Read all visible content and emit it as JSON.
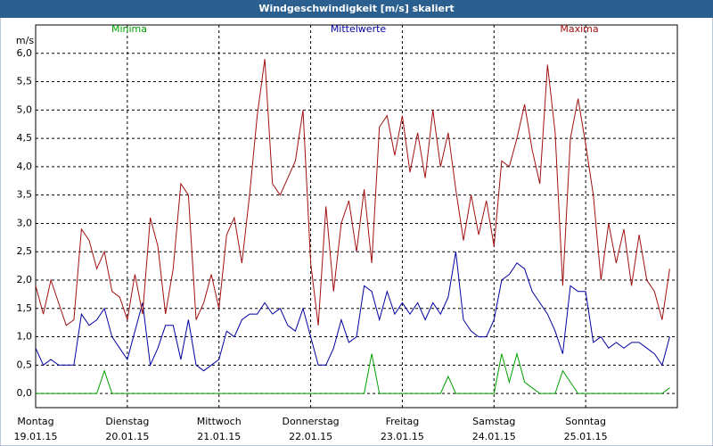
{
  "chart_data": {
    "type": "line",
    "title": "Windgeschwindigkeit [m/s] skaliert",
    "y_label": "m/s",
    "x": [
      0,
      2,
      4,
      6,
      8,
      10,
      12,
      14,
      16,
      18,
      20,
      22,
      24,
      26,
      28,
      30,
      32,
      34,
      36,
      38,
      40,
      42,
      44,
      46,
      48,
      50,
      52,
      54,
      56,
      58,
      60,
      62,
      64,
      66,
      68,
      70,
      72,
      74,
      76,
      78,
      80,
      82,
      84,
      86,
      88,
      90,
      92,
      94,
      96,
      98,
      100,
      102,
      104,
      106,
      108,
      110,
      112,
      114,
      116,
      118,
      120,
      122,
      124,
      126,
      128,
      130,
      132,
      134,
      136,
      138,
      140,
      142,
      144,
      146,
      148,
      150,
      152,
      154,
      156,
      158,
      160,
      162,
      164,
      166
    ],
    "series": [
      {
        "name": "Minima",
        "color": "#00a000",
        "values": [
          0,
          0,
          0,
          0,
          0,
          0,
          0,
          0,
          0,
          0.4,
          0,
          0,
          0,
          0,
          0,
          0,
          0,
          0,
          0,
          0,
          0,
          0,
          0,
          0,
          0,
          0,
          0,
          0,
          0,
          0,
          0,
          0,
          0,
          0,
          0,
          0,
          0,
          0,
          0,
          0,
          0,
          0,
          0,
          0,
          0.7,
          0,
          0,
          0,
          0,
          0,
          0,
          0,
          0,
          0,
          0.3,
          0,
          0,
          0,
          0,
          0,
          0,
          0.7,
          0.2,
          0.7,
          0.2,
          0.1,
          0,
          0,
          0,
          0.4,
          0.2,
          0,
          0,
          0,
          0,
          0,
          0,
          0,
          0,
          0,
          0,
          0,
          0,
          0.1
        ]
      },
      {
        "name": "Mittelwerte",
        "color": "#0000a0",
        "values": [
          0.8,
          0.5,
          0.6,
          0.5,
          0.5,
          0.5,
          1.4,
          1.2,
          1.3,
          1.5,
          1.0,
          0.8,
          0.6,
          1.1,
          1.6,
          0.5,
          0.8,
          1.2,
          1.2,
          0.6,
          1.3,
          0.5,
          0.4,
          0.5,
          0.6,
          1.1,
          1.0,
          1.3,
          1.4,
          1.4,
          1.6,
          1.4,
          1.5,
          1.2,
          1.1,
          1.5,
          1.0,
          0.5,
          0.5,
          0.8,
          1.3,
          0.9,
          1.0,
          1.9,
          1.8,
          1.3,
          1.8,
          1.4,
          1.6,
          1.4,
          1.6,
          1.3,
          1.6,
          1.4,
          1.7,
          2.5,
          1.3,
          1.1,
          1.0,
          1.0,
          1.3,
          2.0,
          2.1,
          2.3,
          2.2,
          1.8,
          1.6,
          1.4,
          1.1,
          0.7,
          1.9,
          1.8,
          1.8,
          0.9,
          1.0,
          0.8,
          0.9,
          0.8,
          0.9,
          0.9,
          0.8,
          0.7,
          0.5,
          1.0
        ]
      },
      {
        "name": "Maxima",
        "color": "#a01010",
        "values": [
          1.9,
          1.4,
          2.0,
          1.6,
          1.2,
          1.3,
          2.9,
          2.7,
          2.2,
          2.5,
          1.8,
          1.7,
          1.3,
          2.1,
          1.4,
          3.1,
          2.6,
          1.4,
          2.2,
          3.7,
          3.5,
          1.3,
          1.6,
          2.1,
          1.5,
          2.8,
          3.1,
          2.3,
          3.5,
          4.9,
          5.9,
          3.7,
          3.5,
          3.8,
          4.1,
          5.0,
          2.3,
          1.2,
          3.3,
          1.8,
          3.0,
          3.4,
          2.5,
          3.6,
          2.3,
          4.7,
          4.9,
          4.2,
          4.9,
          3.9,
          4.6,
          3.8,
          5.0,
          4.0,
          4.6,
          3.6,
          2.7,
          3.5,
          2.8,
          3.4,
          2.6,
          4.1,
          4.0,
          4.5,
          5.1,
          4.3,
          3.7,
          5.8,
          4.6,
          1.9,
          4.5,
          5.2,
          4.4,
          3.5,
          2.0,
          3.0,
          2.3,
          2.9,
          1.9,
          2.8,
          2.0,
          1.8,
          1.3,
          2.2
        ]
      }
    ],
    "xlim": [
      0,
      168
    ],
    "xticks": [
      {
        "value": 0,
        "label": "Montag"
      },
      {
        "value": 24,
        "label": "Dienstag"
      },
      {
        "value": 48,
        "label": "Mittwoch"
      },
      {
        "value": 72,
        "label": "Donnerstag"
      },
      {
        "value": 96,
        "label": "Freitag"
      },
      {
        "value": 120,
        "label": "Samstag"
      },
      {
        "value": 144,
        "label": "Sonntag"
      }
    ],
    "xtick_dates": [
      "19.01.15",
      "20.01.15",
      "21.01.15",
      "22.01.15",
      "23.01.15",
      "24.01.15",
      "25.01.15"
    ],
    "ylim": [
      -0.25,
      6.5
    ],
    "yticks": [
      {
        "value": 0,
        "label": "0,0"
      },
      {
        "value": 0.5,
        "label": "0,5"
      },
      {
        "value": 1,
        "label": "1,0"
      },
      {
        "value": 1.5,
        "label": "1,5"
      },
      {
        "value": 2,
        "label": "2,0"
      },
      {
        "value": 2.5,
        "label": "2,5"
      },
      {
        "value": 3,
        "label": "3,0"
      },
      {
        "value": 3.5,
        "label": "3,5"
      },
      {
        "value": 4,
        "label": "4,0"
      },
      {
        "value": 4.5,
        "label": "4,5"
      },
      {
        "value": 5,
        "label": "5,0"
      },
      {
        "value": 5.5,
        "label": "5,5"
      },
      {
        "value": 6,
        "label": "6,0"
      }
    ],
    "grid": true
  }
}
